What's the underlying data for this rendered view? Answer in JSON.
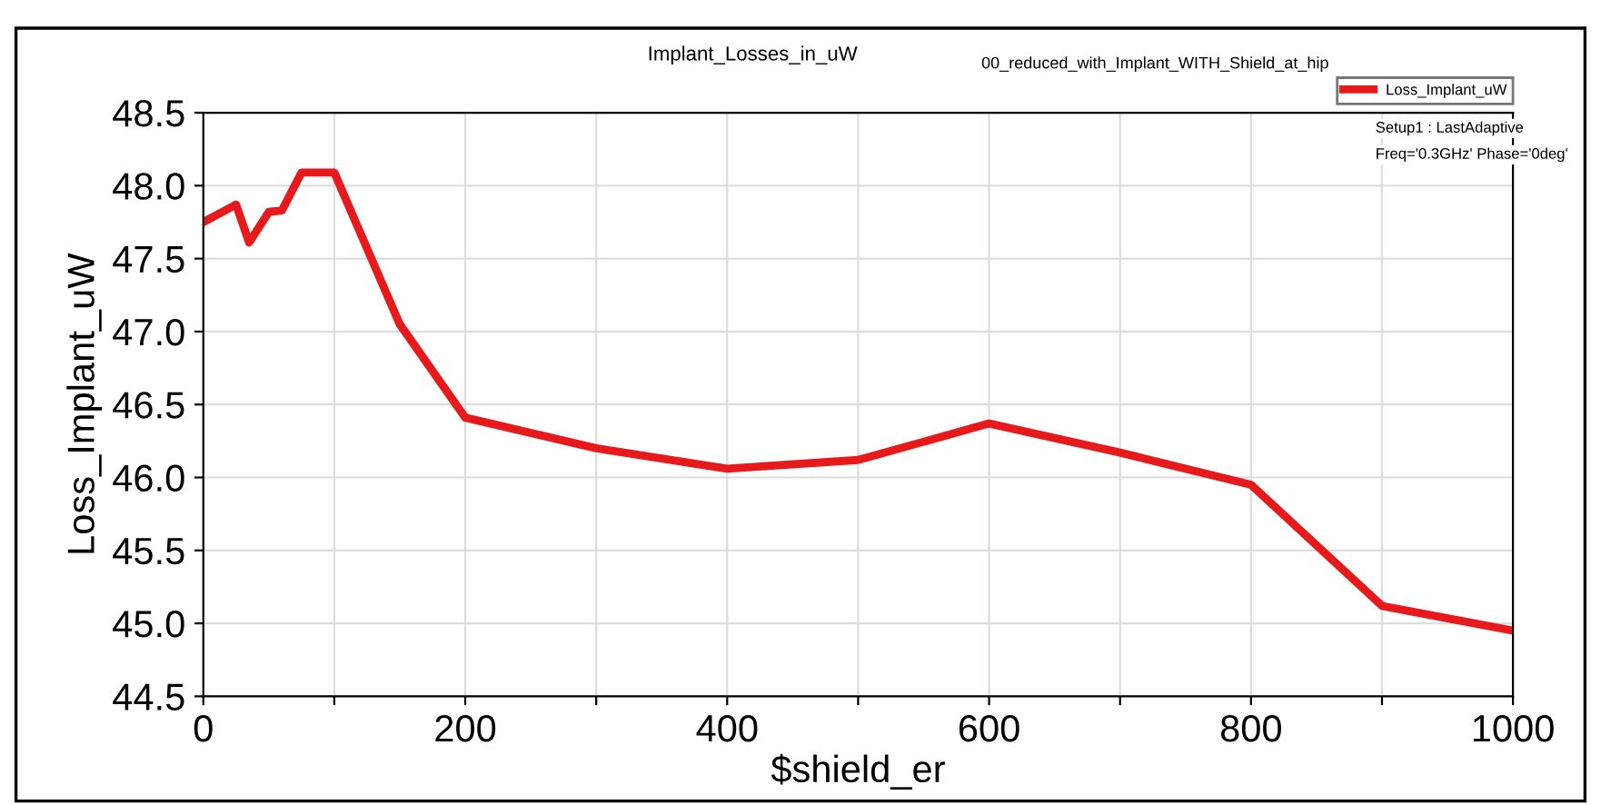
{
  "chart_data": {
    "type": "line",
    "title": "Implant_Losses_in_uW",
    "subtitle": "00_reduced_with_Implant_WITH_Shield_at_hip",
    "xlabel": "$shield_er",
    "ylabel": "Loss_Implant_uW",
    "annotations": [
      "Setup1 : LastAdaptive",
      "Freq='0.3GHz' Phase='0deg'"
    ],
    "x": [
      0,
      25,
      35,
      50,
      60,
      75,
      100,
      150,
      200,
      300,
      400,
      500,
      600,
      700,
      800,
      900,
      1000
    ],
    "series": [
      {
        "name": "Loss_Implant_uW",
        "color": "#e8191a",
        "values": [
          47.75,
          47.87,
          47.61,
          47.82,
          47.83,
          48.09,
          48.09,
          47.05,
          46.41,
          46.2,
          46.06,
          46.12,
          46.37,
          46.17,
          45.95,
          45.12,
          44.95
        ]
      }
    ],
    "xlim": [
      0,
      1000
    ],
    "xticks": [
      0,
      {
        "value": 100,
        "label": null
      },
      200,
      {
        "value": 300,
        "label": null
      },
      400,
      {
        "value": 500,
        "label": null
      },
      600,
      {
        "value": 700,
        "label": null
      },
      800,
      {
        "value": 900,
        "label": null
      },
      1000
    ],
    "ylim": [
      44.5,
      48.5
    ],
    "yticks": [
      44.5,
      {
        "value": 45,
        "label": "45.0"
      },
      45.5,
      {
        "value": 46,
        "label": "46.0"
      },
      46.5,
      {
        "value": 47,
        "label": "47.0"
      },
      47.5,
      {
        "value": 48,
        "label": "48.0"
      },
      48.5
    ],
    "grid": true,
    "legend": "top right",
    "marker": "none",
    "line_style": "solid"
  }
}
